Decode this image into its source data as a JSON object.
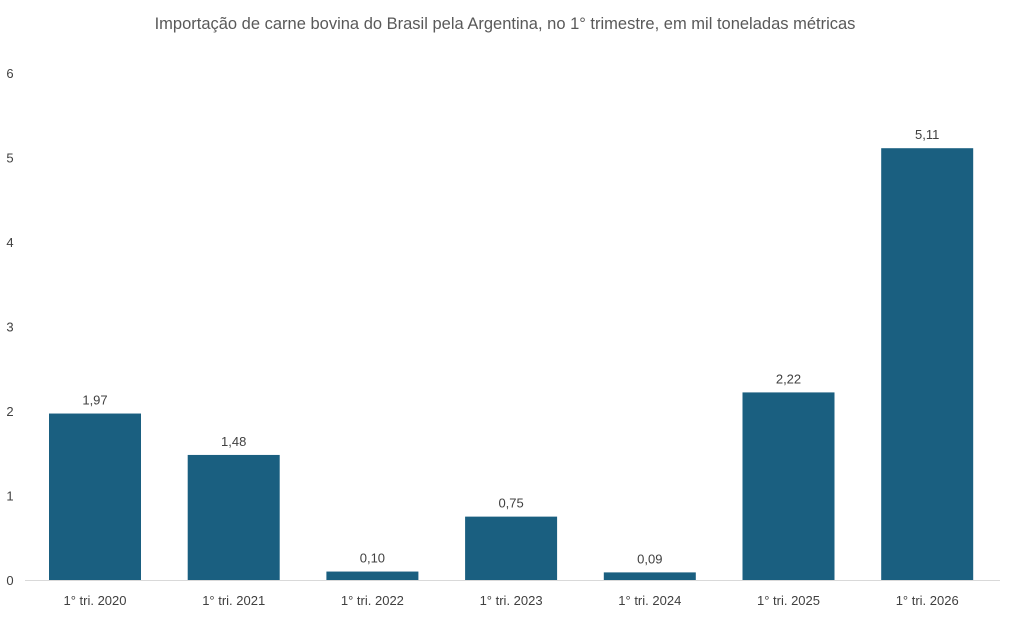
{
  "chart_data": {
    "type": "bar",
    "title": "Importação de carne bovina do Brasil pela Argentina, no 1° trimestre, em mil toneladas métricas",
    "categories": [
      "1° tri. 2020",
      "1° tri. 2021",
      "1° tri. 2022",
      "1° tri. 2023",
      "1° tri. 2024",
      "1° tri. 2025",
      "1° tri. 2026"
    ],
    "values": [
      1.97,
      1.48,
      0.1,
      0.75,
      0.09,
      2.22,
      5.11
    ],
    "data_labels": [
      "1,97",
      "1,48",
      "0,10",
      "0,75",
      "0,09",
      "2,22",
      "5,11"
    ],
    "ylim": [
      0,
      6
    ],
    "yticks": [
      "0",
      "1",
      "2",
      "3",
      "4",
      "5",
      "6"
    ],
    "grid": false,
    "legend": "none",
    "colors": {
      "bar": "#1a5f80",
      "axis": "#d9d9d9",
      "text": "#404040",
      "title": "#595959"
    }
  }
}
